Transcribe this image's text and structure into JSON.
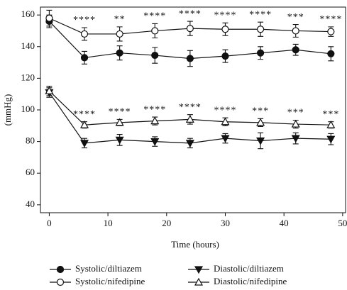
{
  "chart_data": {
    "type": "line",
    "x_label": "Time (hours)",
    "y_label": "(mmHg)",
    "x": [
      0,
      6,
      12,
      18,
      24,
      30,
      36,
      42,
      48
    ],
    "xlim": [
      -1.5,
      50.5
    ],
    "xticks": [
      0,
      10,
      20,
      30,
      40,
      50
    ],
    "ylim": [
      35,
      165
    ],
    "yticks": [
      40,
      60,
      80,
      100,
      120,
      140,
      160
    ],
    "grid": false,
    "series": [
      {
        "name": "Systolic/diltiazem",
        "color": "#111111",
        "marker": "circle-filled",
        "values": [
          156,
          133,
          136,
          134.5,
          132.5,
          134,
          136,
          138,
          135.5
        ],
        "errors": [
          4,
          4,
          4.5,
          5,
          5,
          4,
          4,
          3.5,
          4.5
        ]
      },
      {
        "name": "Systolic/nifedipine",
        "color": "#111111",
        "marker": "circle-open",
        "values": [
          158,
          148,
          148,
          150,
          151.5,
          151,
          151,
          150,
          149.5
        ],
        "errors": [
          5,
          4,
          4.5,
          4.5,
          4.5,
          4,
          4.5,
          4,
          3
        ]
      },
      {
        "name": "Diastolic/diltiazem",
        "color": "#111111",
        "marker": "triangle-down-filled",
        "values": [
          111,
          79,
          81,
          80,
          79,
          82,
          80.5,
          82,
          81.5
        ],
        "errors": [
          3,
          3,
          3.5,
          3,
          3,
          3,
          5,
          3.5,
          3.5
        ]
      },
      {
        "name": "Diastolic/nifedipine",
        "color": "#111111",
        "marker": "triangle-up-open",
        "values": [
          112,
          90.5,
          92,
          93,
          94,
          92.5,
          92,
          91,
          90.5
        ],
        "errors": [
          3,
          2,
          2,
          2.5,
          3,
          2.5,
          2.5,
          2.5,
          2
        ]
      }
    ],
    "annotations": {
      "systolic": [
        "****",
        "**",
        "****",
        "****",
        "****",
        "****",
        "***",
        "****"
      ],
      "diastolic": [
        "****",
        "****",
        "****",
        "****",
        "****",
        "***",
        "***",
        "***"
      ]
    }
  }
}
